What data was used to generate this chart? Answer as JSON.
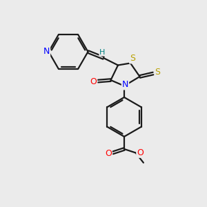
{
  "background_color": "#ebebeb",
  "bond_color": "#1a1a1a",
  "N_color": "#0000ff",
  "O_color": "#ff0000",
  "S_color": "#b8a000",
  "H_color": "#008080",
  "line_width": 1.6,
  "fig_size": [
    3.0,
    3.0
  ],
  "dpi": 100,
  "xlim": [
    0,
    10
  ],
  "ylim": [
    0,
    10
  ]
}
